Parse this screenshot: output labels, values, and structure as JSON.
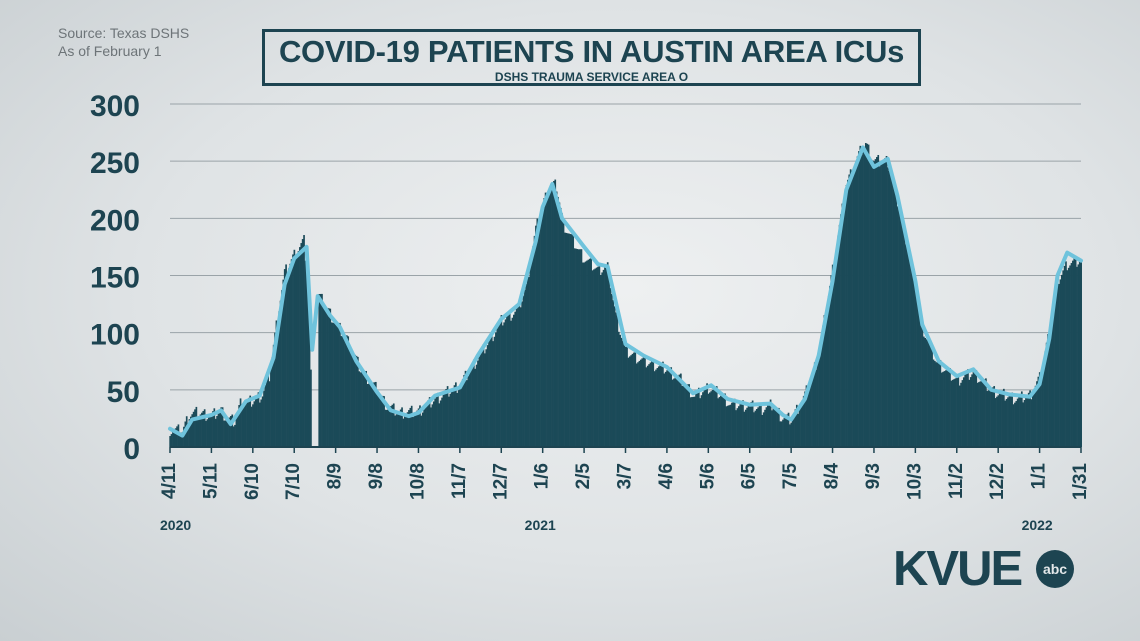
{
  "header": {
    "source_line1": "Source: Texas DSHS",
    "source_line2": "As of February 1",
    "title": "COVID-19 PATIENTS IN AUSTIN AREA ICUs",
    "subtitle": "DSHS TRAUMA SERVICE AREA O"
  },
  "logo": {
    "text": "KVUE",
    "badge": "abc"
  },
  "colors": {
    "bars": "#1b4a58",
    "line": "#6fc3dc",
    "text": "#1d4451",
    "grid": "#9aa3a8"
  },
  "chart_data": {
    "type": "bar",
    "title": "COVID-19 PATIENTS IN AUSTIN AREA ICUs",
    "subtitle": "DSHS TRAUMA SERVICE AREA O",
    "xlabel": "",
    "ylabel": "",
    "ylim": [
      0,
      300
    ],
    "yticks": [
      0,
      50,
      100,
      150,
      200,
      250,
      300
    ],
    "grid": true,
    "legend": "none",
    "x_start": "2020-04-11",
    "x_end": "2022-01-31",
    "xticks": [
      "4/11",
      "5/11",
      "6/10",
      "7/10",
      "8/9",
      "9/8",
      "10/8",
      "11/7",
      "12/7",
      "1/6",
      "2/5",
      "3/7",
      "4/6",
      "5/6",
      "6/5",
      "7/5",
      "8/4",
      "9/3",
      "10/3",
      "11/2",
      "12/2",
      "1/1",
      "1/31"
    ],
    "year_labels": [
      {
        "label": "2020",
        "date": "2020-04-11"
      },
      {
        "label": "2021",
        "date": "2021-01-06"
      },
      {
        "label": "2022",
        "date": "2022-01-01"
      }
    ],
    "series": [
      {
        "kind": "daily",
        "points": [
          [
            "2020-04-11",
            15
          ],
          [
            "2020-04-20",
            14
          ],
          [
            "2020-04-25",
            28
          ],
          [
            "2020-05-01",
            30
          ],
          [
            "2020-05-11",
            27
          ],
          [
            "2020-05-18",
            32
          ],
          [
            "2020-05-22",
            25
          ],
          [
            "2020-05-28",
            22
          ],
          [
            "2020-06-01",
            38
          ],
          [
            "2020-06-10",
            40
          ],
          [
            "2020-06-17",
            46
          ],
          [
            "2020-06-22",
            62
          ],
          [
            "2020-06-28",
            115
          ],
          [
            "2020-07-03",
            152
          ],
          [
            "2020-07-10",
            168
          ],
          [
            "2020-07-17",
            180
          ],
          [
            "2020-07-21",
            130
          ],
          [
            "2020-07-23",
            0
          ],
          [
            "2020-07-27",
            0
          ],
          [
            "2020-07-28",
            132
          ],
          [
            "2020-08-01",
            125
          ],
          [
            "2020-08-09",
            108
          ],
          [
            "2020-08-17",
            95
          ],
          [
            "2020-08-27",
            68
          ],
          [
            "2020-09-08",
            50
          ],
          [
            "2020-09-15",
            36
          ],
          [
            "2020-09-24",
            30
          ],
          [
            "2020-10-08",
            31
          ],
          [
            "2020-10-18",
            40
          ],
          [
            "2020-11-01",
            50
          ],
          [
            "2020-11-07",
            54
          ],
          [
            "2020-11-17",
            72
          ],
          [
            "2020-11-27",
            90
          ],
          [
            "2020-12-07",
            110
          ],
          [
            "2020-12-19",
            120
          ],
          [
            "2020-12-25",
            140
          ],
          [
            "2021-01-01",
            190
          ],
          [
            "2021-01-06",
            212
          ],
          [
            "2021-01-12",
            230
          ],
          [
            "2021-01-16",
            228
          ],
          [
            "2021-01-21",
            195
          ],
          [
            "2021-02-01",
            172
          ],
          [
            "2021-02-05",
            165
          ],
          [
            "2021-02-15",
            155
          ],
          [
            "2021-02-22",
            158
          ],
          [
            "2021-02-28",
            115
          ],
          [
            "2021-03-07",
            84
          ],
          [
            "2021-03-20",
            75
          ],
          [
            "2021-04-06",
            68
          ],
          [
            "2021-04-18",
            57
          ],
          [
            "2021-04-26",
            44
          ],
          [
            "2021-05-06",
            52
          ],
          [
            "2021-05-16",
            45
          ],
          [
            "2021-05-22",
            37
          ],
          [
            "2021-06-05",
            36
          ],
          [
            "2021-06-13",
            33
          ],
          [
            "2021-06-22",
            37
          ],
          [
            "2021-06-28",
            26
          ],
          [
            "2021-07-05",
            24
          ],
          [
            "2021-07-15",
            45
          ],
          [
            "2021-07-25",
            80
          ],
          [
            "2021-08-04",
            155
          ],
          [
            "2021-08-14",
            230
          ],
          [
            "2021-08-24",
            258
          ],
          [
            "2021-08-28",
            265
          ],
          [
            "2021-09-03",
            250
          ],
          [
            "2021-09-13",
            250
          ],
          [
            "2021-09-20",
            215
          ],
          [
            "2021-10-03",
            145
          ],
          [
            "2021-10-08",
            105
          ],
          [
            "2021-10-18",
            75
          ],
          [
            "2021-11-02",
            58
          ],
          [
            "2021-11-14",
            65
          ],
          [
            "2021-11-27",
            50
          ],
          [
            "2021-12-02",
            47
          ],
          [
            "2021-12-15",
            42
          ],
          [
            "2021-12-25",
            45
          ],
          [
            "2022-01-01",
            60
          ],
          [
            "2022-01-08",
            100
          ],
          [
            "2022-01-14",
            145
          ],
          [
            "2022-01-21",
            160
          ],
          [
            "2022-01-31",
            163
          ]
        ]
      },
      {
        "kind": "moving_average",
        "points": [
          [
            "2020-04-11",
            16
          ],
          [
            "2020-04-20",
            10
          ],
          [
            "2020-04-27",
            24
          ],
          [
            "2020-05-11",
            28
          ],
          [
            "2020-05-18",
            32
          ],
          [
            "2020-05-25",
            20
          ],
          [
            "2020-06-05",
            40
          ],
          [
            "2020-06-15",
            45
          ],
          [
            "2020-06-25",
            78
          ],
          [
            "2020-07-03",
            142
          ],
          [
            "2020-07-10",
            165
          ],
          [
            "2020-07-19",
            175
          ],
          [
            "2020-07-23",
            85
          ],
          [
            "2020-07-27",
            132
          ],
          [
            "2020-08-05",
            115
          ],
          [
            "2020-08-12",
            105
          ],
          [
            "2020-08-24",
            75
          ],
          [
            "2020-09-08",
            48
          ],
          [
            "2020-09-18",
            32
          ],
          [
            "2020-10-01",
            27
          ],
          [
            "2020-10-08",
            30
          ],
          [
            "2020-10-20",
            45
          ],
          [
            "2020-11-07",
            52
          ],
          [
            "2020-11-20",
            80
          ],
          [
            "2020-12-07",
            112
          ],
          [
            "2020-12-20",
            125
          ],
          [
            "2021-01-01",
            180
          ],
          [
            "2021-01-06",
            210
          ],
          [
            "2021-01-13",
            230
          ],
          [
            "2021-01-20",
            200
          ],
          [
            "2021-02-05",
            175
          ],
          [
            "2021-02-15",
            160
          ],
          [
            "2021-02-22",
            158
          ],
          [
            "2021-03-07",
            90
          ],
          [
            "2021-03-20",
            80
          ],
          [
            "2021-04-06",
            70
          ],
          [
            "2021-04-25",
            47
          ],
          [
            "2021-05-08",
            54
          ],
          [
            "2021-05-20",
            42
          ],
          [
            "2021-06-05",
            37
          ],
          [
            "2021-06-20",
            38
          ],
          [
            "2021-06-29",
            28
          ],
          [
            "2021-07-05",
            24
          ],
          [
            "2021-07-15",
            42
          ],
          [
            "2021-07-25",
            80
          ],
          [
            "2021-08-04",
            145
          ],
          [
            "2021-08-14",
            225
          ],
          [
            "2021-08-26",
            262
          ],
          [
            "2021-09-03",
            245
          ],
          [
            "2021-09-13",
            252
          ],
          [
            "2021-09-20",
            220
          ],
          [
            "2021-10-03",
            145
          ],
          [
            "2021-10-08",
            107
          ],
          [
            "2021-10-20",
            75
          ],
          [
            "2021-11-02",
            62
          ],
          [
            "2021-11-14",
            68
          ],
          [
            "2021-11-27",
            50
          ],
          [
            "2021-12-10",
            46
          ],
          [
            "2021-12-25",
            44
          ],
          [
            "2022-01-01",
            55
          ],
          [
            "2022-01-08",
            95
          ],
          [
            "2022-01-14",
            150
          ],
          [
            "2022-01-21",
            170
          ],
          [
            "2022-01-31",
            163
          ]
        ]
      }
    ]
  }
}
